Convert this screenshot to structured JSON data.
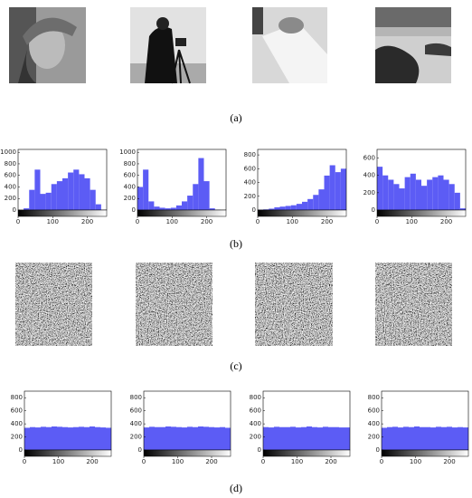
{
  "captions": [
    "(a)",
    "(b)",
    "(c)",
    "(d)"
  ],
  "chart_data": [
    {
      "type": "histogram",
      "bins": [
        0,
        16,
        32,
        48,
        64,
        80,
        96,
        112,
        128,
        144,
        160,
        176,
        192,
        208,
        224,
        240,
        256
      ],
      "values": [
        0,
        30,
        350,
        700,
        280,
        300,
        450,
        500,
        550,
        650,
        700,
        620,
        550,
        350,
        100,
        5
      ],
      "color": "#5c5cf5",
      "xlim": [
        0,
        256
      ],
      "ylim": [
        0,
        1050
      ],
      "xticks": [
        0,
        100,
        200
      ],
      "yticks": [
        0,
        200,
        400,
        600,
        800,
        1000
      ]
    },
    {
      "type": "histogram",
      "bins": [
        0,
        16,
        32,
        48,
        64,
        80,
        96,
        112,
        128,
        144,
        160,
        176,
        192,
        208,
        224,
        240,
        256
      ],
      "values": [
        400,
        700,
        150,
        60,
        40,
        30,
        40,
        80,
        150,
        250,
        450,
        900,
        500,
        30,
        5,
        0
      ],
      "color": "#5c5cf5",
      "xlim": [
        0,
        256
      ],
      "ylim": [
        0,
        1050
      ],
      "xticks": [
        0,
        100,
        200
      ],
      "yticks": [
        0,
        200,
        400,
        600,
        800,
        1000
      ]
    },
    {
      "type": "histogram",
      "bins": [
        0,
        16,
        32,
        48,
        64,
        80,
        96,
        112,
        128,
        144,
        160,
        176,
        192,
        208,
        224,
        240,
        256
      ],
      "values": [
        5,
        10,
        20,
        40,
        50,
        60,
        70,
        90,
        120,
        160,
        220,
        300,
        500,
        650,
        550,
        600
      ],
      "color": "#5c5cf5",
      "xlim": [
        0,
        256
      ],
      "ylim": [
        0,
        880
      ],
      "xticks": [
        0,
        100,
        200
      ],
      "yticks": [
        0,
        200,
        400,
        600,
        800
      ]
    },
    {
      "type": "histogram",
      "bins": [
        0,
        16,
        32,
        48,
        64,
        80,
        96,
        112,
        128,
        144,
        160,
        176,
        192,
        208,
        224,
        240,
        256
      ],
      "values": [
        500,
        400,
        350,
        300,
        250,
        380,
        420,
        350,
        280,
        350,
        380,
        400,
        350,
        300,
        200,
        20
      ],
      "color": "#5c5cf5",
      "xlim": [
        0,
        256
      ],
      "ylim": [
        0,
        700
      ],
      "xticks": [
        0,
        100,
        200
      ],
      "yticks": [
        0,
        200,
        400,
        600
      ]
    },
    {
      "type": "histogram",
      "bins": [
        0,
        16,
        32,
        48,
        64,
        80,
        96,
        112,
        128,
        144,
        160,
        176,
        192,
        208,
        224,
        240,
        256
      ],
      "values": [
        340,
        350,
        345,
        355,
        350,
        360,
        355,
        350,
        345,
        350,
        355,
        350,
        360,
        350,
        345,
        340
      ],
      "color": "#5c5cf5",
      "xlim": [
        0,
        256
      ],
      "ylim": [
        0,
        900
      ],
      "xticks": [
        0,
        100,
        200
      ],
      "yticks": [
        0,
        200,
        400,
        600,
        800
      ]
    },
    {
      "type": "histogram",
      "bins": [
        0,
        16,
        32,
        48,
        64,
        80,
        96,
        112,
        128,
        144,
        160,
        176,
        192,
        208,
        224,
        240,
        256
      ],
      "values": [
        345,
        355,
        350,
        350,
        360,
        355,
        350,
        345,
        355,
        350,
        360,
        355,
        350,
        345,
        350,
        340
      ],
      "color": "#5c5cf5",
      "xlim": [
        0,
        256
      ],
      "ylim": [
        0,
        900
      ],
      "xticks": [
        0,
        100,
        200
      ],
      "yticks": [
        0,
        200,
        400,
        600,
        800
      ]
    },
    {
      "type": "histogram",
      "bins": [
        0,
        16,
        32,
        48,
        64,
        80,
        96,
        112,
        128,
        144,
        160,
        176,
        192,
        208,
        224,
        240,
        256
      ],
      "values": [
        350,
        345,
        355,
        350,
        350,
        355,
        345,
        350,
        360,
        350,
        345,
        355,
        350,
        350,
        345,
        345
      ],
      "color": "#5c5cf5",
      "xlim": [
        0,
        256
      ],
      "ylim": [
        0,
        900
      ],
      "xticks": [
        0,
        100,
        200
      ],
      "yticks": [
        0,
        200,
        400,
        600,
        800
      ]
    },
    {
      "type": "histogram",
      "bins": [
        0,
        16,
        32,
        48,
        64,
        80,
        96,
        112,
        128,
        144,
        160,
        176,
        192,
        208,
        224,
        240,
        256
      ],
      "values": [
        340,
        350,
        355,
        345,
        355,
        350,
        360,
        350,
        350,
        345,
        355,
        350,
        355,
        345,
        350,
        345
      ],
      "color": "#5c5cf5",
      "xlim": [
        0,
        256
      ],
      "ylim": [
        0,
        900
      ],
      "xticks": [
        0,
        100,
        200
      ],
      "yticks": [
        0,
        200,
        400,
        600,
        800
      ]
    }
  ]
}
